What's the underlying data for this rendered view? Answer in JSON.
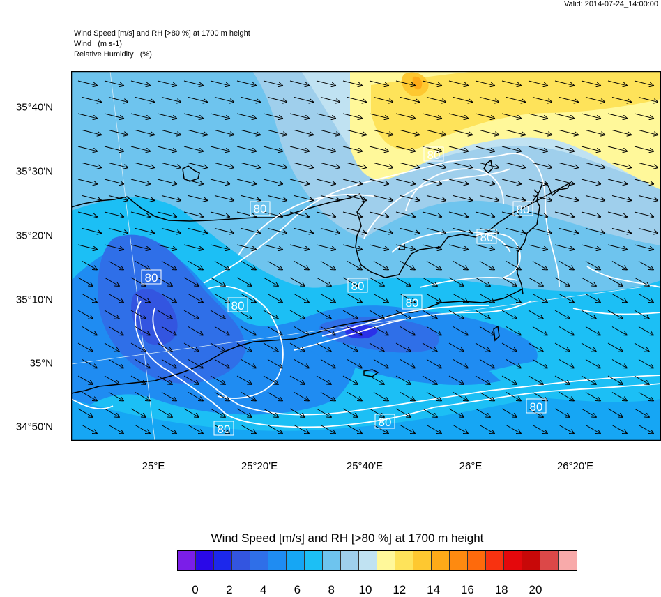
{
  "valid_time": "Valid: 2014-07-24_14:00:00",
  "header_lines": {
    "l1": "Wind Speed [m/s] and RH [>80 %] at 1700 m height",
    "l2": "Wind   (m s-1)",
    "l3": "Relative Humidity   (%)"
  },
  "lat_labels": [
    "35°40'N",
    "35°30'N",
    "35°20'N",
    "35°10'N",
    "35°N",
    "34°50'N"
  ],
  "lon_labels": [
    "25°E",
    "25°20'E",
    "25°40'E",
    "26°E",
    "26°20'E"
  ],
  "contour_label": "80",
  "colorbar": {
    "title": "Wind Speed [m/s] and RH [>80 %] at 1700 m height",
    "colors": [
      "#7b1ee8",
      "#2a08e8",
      "#1c28ec",
      "#3355e0",
      "#2f6fe8",
      "#1f8cf2",
      "#16a6f4",
      "#1cbff5",
      "#6ec4ee",
      "#9fcfec",
      "#c0e2f2",
      "#fff89a",
      "#fee35a",
      "#fec830",
      "#feaa18",
      "#fe8a10",
      "#fe6a0c",
      "#f83210",
      "#e4080c",
      "#c80808",
      "#dc4848",
      "#f8aaaa"
    ],
    "tick_labels": [
      "0",
      "2",
      "4",
      "6",
      "8",
      "10",
      "12",
      "14",
      "16",
      "18",
      "20"
    ]
  }
}
